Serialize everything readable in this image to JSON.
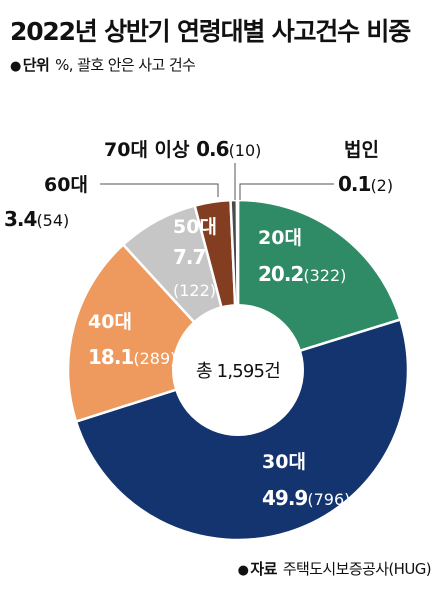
{
  "header": {
    "title": "2022년 상반기 연령대별 사고건수 비중",
    "unit_label": "단위",
    "unit_text": "%, 괄호 안은 사고 건수"
  },
  "footer": {
    "source_label": "자료",
    "source_text": "주택도시보증공사(HUG)"
  },
  "chart_data": {
    "type": "pie",
    "donut": true,
    "center_label": "총 1,595건",
    "start": "top",
    "direction": "clockwise",
    "slices": [
      {
        "name": "20대",
        "percent": "20.2",
        "value": 20.2,
        "count": "(322)",
        "color": "#2e8b66",
        "text_color": "#ffffff"
      },
      {
        "name": "30대",
        "percent": "49.9",
        "value": 49.9,
        "count": "(796)",
        "color": "#13346e",
        "text_color": "#ffffff"
      },
      {
        "name": "40대",
        "percent": "18.1",
        "value": 18.1,
        "count": "(289)",
        "color": "#ee9a5e",
        "text_color": "#ffffff"
      },
      {
        "name": "50대",
        "percent": "7.7",
        "value": 7.7,
        "count": "(122)",
        "color": "#c6c6c6",
        "text_color": "#ffffff"
      },
      {
        "name": "60대",
        "percent": "3.4",
        "value": 3.4,
        "count": "(54)",
        "color": "#833e22",
        "text_color": "#111111"
      },
      {
        "name": "70대 이상",
        "percent": "0.6",
        "value": 0.6,
        "count": "(10)",
        "color": "#4a4a4a",
        "text_color": "#111111"
      },
      {
        "name": "법인",
        "percent": "0.1",
        "value": 0.1,
        "count": "(2)",
        "color": "#111111",
        "text_color": "#111111"
      }
    ]
  }
}
